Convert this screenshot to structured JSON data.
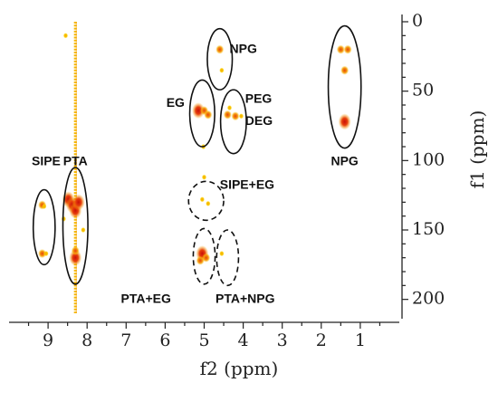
{
  "chart_data": {
    "type": "scatter",
    "subtype": "2D NMR correlation map (HMBC-style)",
    "title": "",
    "xlabel": "f2 (ppm)",
    "ylabel": "f1 (ppm)",
    "xlim": [
      10,
      0
    ],
    "ylim": [
      0,
      210
    ],
    "x_reversed": true,
    "y_reversed": true,
    "x_ticks": [
      9,
      8,
      7,
      6,
      5,
      4,
      3,
      2,
      1
    ],
    "y_ticks": [
      0,
      50,
      100,
      150,
      200
    ],
    "grid": false,
    "colors": {
      "weak": "#f5b800",
      "medium": "#f07a10",
      "strong": "#d61a0a",
      "outline": "#111111"
    },
    "streak": {
      "x": 8.3,
      "y_from": 0,
      "y_to": 210
    },
    "peaks": [
      {
        "x": 9.15,
        "y": 132,
        "intensity": "medium"
      },
      {
        "x": 9.1,
        "y": 133,
        "intensity": "weak"
      },
      {
        "x": 9.15,
        "y": 167,
        "intensity": "medium"
      },
      {
        "x": 9.05,
        "y": 167,
        "intensity": "weak"
      },
      {
        "x": 8.48,
        "y": 128,
        "intensity": "strong"
      },
      {
        "x": 8.38,
        "y": 132,
        "intensity": "strong"
      },
      {
        "x": 8.3,
        "y": 136,
        "intensity": "strong"
      },
      {
        "x": 8.22,
        "y": 130,
        "intensity": "strong"
      },
      {
        "x": 8.3,
        "y": 170,
        "intensity": "strong"
      },
      {
        "x": 8.3,
        "y": 165,
        "intensity": "medium"
      },
      {
        "x": 8.55,
        "y": 10,
        "intensity": "weak"
      },
      {
        "x": 8.6,
        "y": 142,
        "intensity": "weak"
      },
      {
        "x": 8.1,
        "y": 150,
        "intensity": "weak"
      },
      {
        "x": 4.6,
        "y": 20,
        "intensity": "medium"
      },
      {
        "x": 4.55,
        "y": 35,
        "intensity": "weak"
      },
      {
        "x": 5.15,
        "y": 64,
        "intensity": "strong"
      },
      {
        "x": 5.0,
        "y": 64,
        "intensity": "medium"
      },
      {
        "x": 4.9,
        "y": 67,
        "intensity": "medium"
      },
      {
        "x": 5.02,
        "y": 90,
        "intensity": "weak"
      },
      {
        "x": 4.4,
        "y": 67,
        "intensity": "medium"
      },
      {
        "x": 4.2,
        "y": 68,
        "intensity": "medium"
      },
      {
        "x": 4.05,
        "y": 68,
        "intensity": "weak"
      },
      {
        "x": 4.35,
        "y": 62,
        "intensity": "weak"
      },
      {
        "x": 5.0,
        "y": 112,
        "intensity": "weak"
      },
      {
        "x": 5.05,
        "y": 128,
        "intensity": "weak"
      },
      {
        "x": 4.9,
        "y": 131,
        "intensity": "weak"
      },
      {
        "x": 5.05,
        "y": 167,
        "intensity": "strong"
      },
      {
        "x": 4.95,
        "y": 170,
        "intensity": "medium"
      },
      {
        "x": 5.1,
        "y": 172,
        "intensity": "medium"
      },
      {
        "x": 4.55,
        "y": 167,
        "intensity": "weak"
      },
      {
        "x": 1.5,
        "y": 20,
        "intensity": "medium"
      },
      {
        "x": 1.32,
        "y": 20,
        "intensity": "medium"
      },
      {
        "x": 1.4,
        "y": 35,
        "intensity": "medium"
      },
      {
        "x": 1.4,
        "y": 72,
        "intensity": "strong"
      }
    ],
    "regions": [
      {
        "cx": 9.1,
        "cy": 148,
        "rx": 0.28,
        "ry": 27,
        "dashed": false
      },
      {
        "cx": 8.3,
        "cy": 147,
        "rx": 0.32,
        "ry": 42,
        "dashed": false
      },
      {
        "cx": 4.6,
        "cy": 27,
        "rx": 0.32,
        "ry": 22,
        "dashed": false
      },
      {
        "cx": 5.05,
        "cy": 66,
        "rx": 0.32,
        "ry": 24,
        "dashed": false
      },
      {
        "cx": 4.25,
        "cy": 72,
        "rx": 0.33,
        "ry": 23,
        "dashed": false
      },
      {
        "cx": 1.4,
        "cy": 47,
        "rx": 0.42,
        "ry": 44,
        "dashed": false
      },
      {
        "cx": 4.95,
        "cy": 129,
        "rx": 0.45,
        "ry": 14,
        "dashed": true
      },
      {
        "cx": 5.0,
        "cy": 169,
        "rx": 0.28,
        "ry": 20,
        "dashed": true
      },
      {
        "cx": 4.4,
        "cy": 170,
        "rx": 0.28,
        "ry": 20,
        "dashed": true
      }
    ],
    "annotations": [
      {
        "text": "NPG",
        "x": 4.35,
        "y": 20,
        "anchor": "start"
      },
      {
        "text": "EG",
        "x": 5.5,
        "y": 59,
        "anchor": "end"
      },
      {
        "text": "PEG",
        "x": 3.95,
        "y": 56,
        "anchor": "start"
      },
      {
        "text": "DEG",
        "x": 3.95,
        "y": 72,
        "anchor": "start"
      },
      {
        "text": "NPG",
        "x": 1.4,
        "y": 101,
        "anchor": "middle"
      },
      {
        "text": "SIPE",
        "x": 9.05,
        "y": 101,
        "anchor": "middle"
      },
      {
        "text": "PTA",
        "x": 8.3,
        "y": 101,
        "anchor": "middle"
      },
      {
        "text": "SIPE+EG",
        "x": 4.6,
        "y": 118,
        "anchor": "start"
      },
      {
        "text": "PTA+EG",
        "x": 5.85,
        "y": 200,
        "anchor": "end"
      },
      {
        "text": "PTA+NPG",
        "x": 3.95,
        "y": 200,
        "anchor": "middle"
      }
    ]
  }
}
